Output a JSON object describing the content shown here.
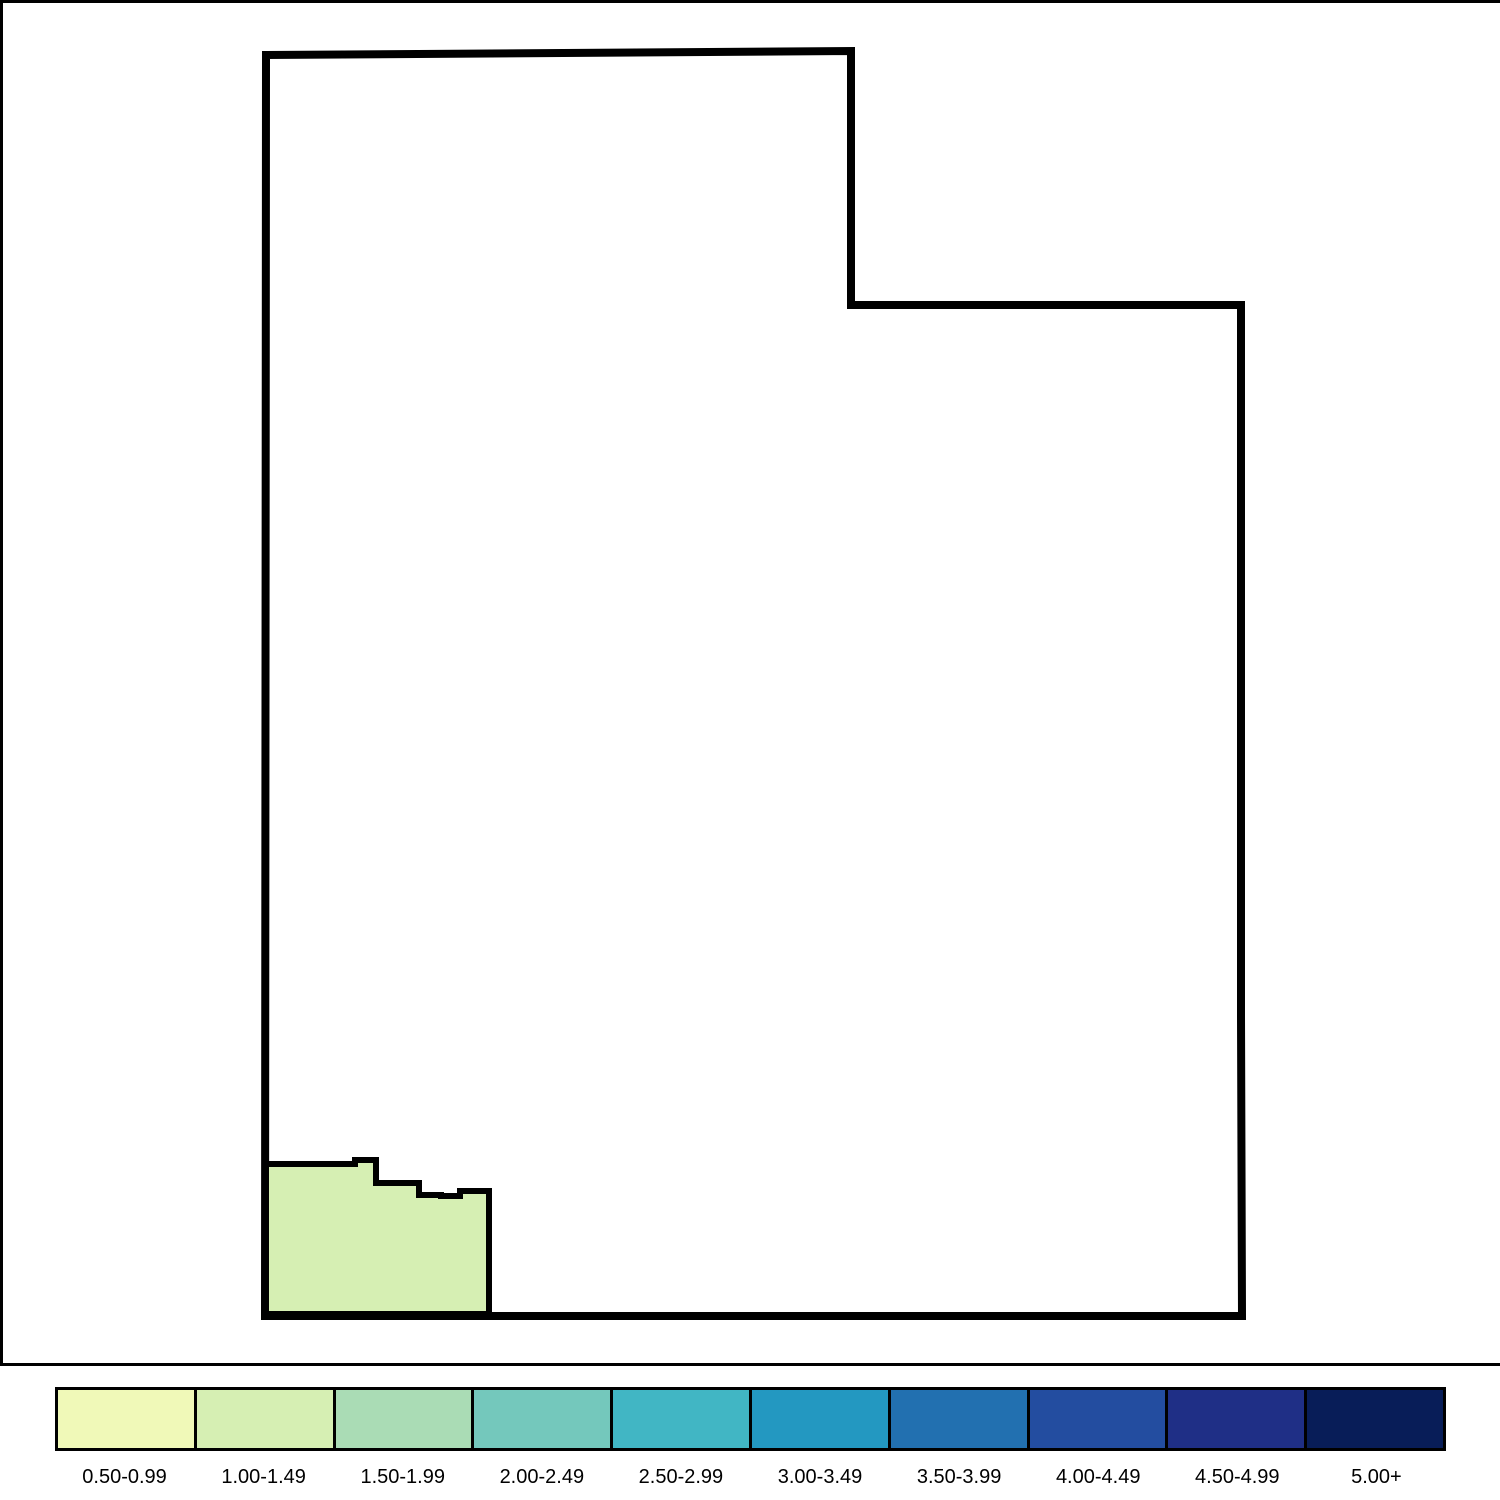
{
  "map": {
    "region_fill_default": "#ffffff",
    "outline_color": "#000000",
    "highlighted_region": {
      "bin": "1.00-1.49",
      "fill": "#d6efb3"
    }
  },
  "legend": {
    "bins": [
      {
        "label": "0.50-0.99",
        "color": "#f0f9b8"
      },
      {
        "label": "1.00-1.49",
        "color": "#d6efb3"
      },
      {
        "label": "1.50-1.99",
        "color": "#aadcb5"
      },
      {
        "label": "2.00-2.49",
        "color": "#74c8bc"
      },
      {
        "label": "2.50-2.99",
        "color": "#41b6c4"
      },
      {
        "label": "3.00-3.49",
        "color": "#2398c1"
      },
      {
        "label": "3.50-3.99",
        "color": "#2270b0"
      },
      {
        "label": "4.00-4.49",
        "color": "#234da0"
      },
      {
        "label": "4.50-4.99",
        "color": "#1f2f86"
      },
      {
        "label": "5.00+",
        "color": "#081d58"
      }
    ]
  }
}
